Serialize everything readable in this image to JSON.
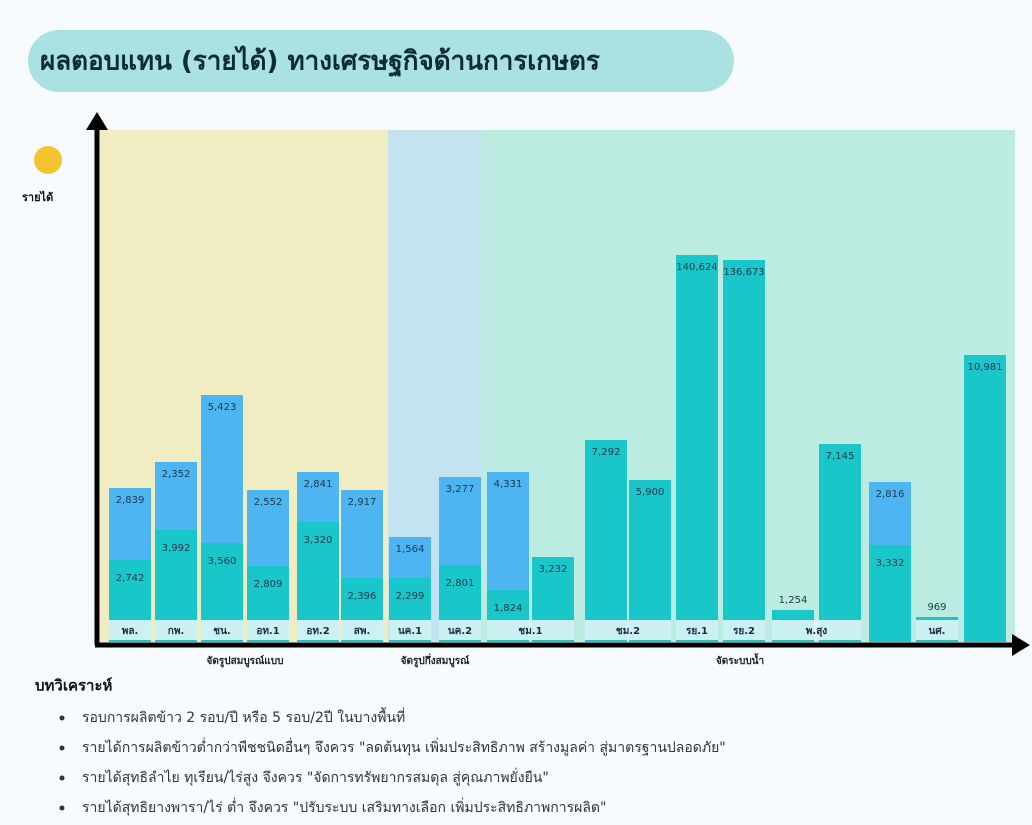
{
  "title": "ผลตอบแทน (รายได้) ทางเศรษฐกิจด้านการเกษตร",
  "y_label": "รายได้",
  "bars": [
    {
      "label": "พล.",
      "lower": "2,742",
      "upper": "2,839"
    },
    {
      "label": "กพ.",
      "lower": "3,992",
      "upper": "2,352"
    },
    {
      "label": "ชน.",
      "lower": "3,560",
      "upper": "5,423"
    },
    {
      "label": "อท.1",
      "lower": "2,809",
      "upper": "2,552"
    },
    {
      "label": "อท.2",
      "lower": "3,320",
      "upper": "2,841"
    },
    {
      "label": "สพ.",
      "lower": "2,396",
      "upper": "2,917"
    },
    {
      "label": "นค.1",
      "lower": "2,299",
      "upper": "1,564"
    },
    {
      "label": "นค.2",
      "lower": "2,801",
      "upper": "3,277"
    },
    {
      "label": "ชม.1",
      "lower": "1,824",
      "upper": "4,331"
    },
    {
      "label": null,
      "lower": "3,232"
    },
    {
      "label": "ชม.2",
      "lower": "7,292"
    },
    {
      "label": null,
      "lower": "5,900"
    },
    {
      "label": "รย.1",
      "lower": "140,624"
    },
    {
      "label": "รย.2",
      "lower": "136,673"
    },
    {
      "label": "พ.สุง",
      "lower": "1,254"
    },
    {
      "label": null,
      "lower": "7,145"
    },
    {
      "label": null,
      "lower": "3,332",
      "upper": "2,816"
    },
    {
      "label": "นศ.",
      "lower": "969"
    },
    {
      "label": null,
      "lower": "10,981"
    }
  ],
  "groups": [
    "จัดรูปสมบูรณ์แบบ",
    "จัดรูปกึ่งสมบูรณ์",
    "จัดระบบน้ำ"
  ],
  "analysis": {
    "heading": "บทวิเคราะห์",
    "items": [
      "รอบการผลิตข้าว 2 รอบ/ปี หรือ 5 รอบ/2ปี ในบางพื้นที่",
      "รายได้การผลิตข้าวต่ำกว่าพืชชนิดอื่นๆ จึงควร \"ลดต้นทุน เพิ่มประสิทธิภาพ สร้างมูลค่า สู่มาตรฐานปลอดภัย\"",
      "รายได้สุทธิลำไย ทุเรียน/ไร่สูง จึงควร \"จัดการทรัพยากรสมดุล สู่คุณภาพยั่งยืน\"",
      "รายได้สุทธิยางพารา/ไร่ ต่ำ จึงควร \"ปรับระบบ เสริมทางเลือก เพิ่มประสิทธิภาพการผลิต\""
    ]
  }
}
